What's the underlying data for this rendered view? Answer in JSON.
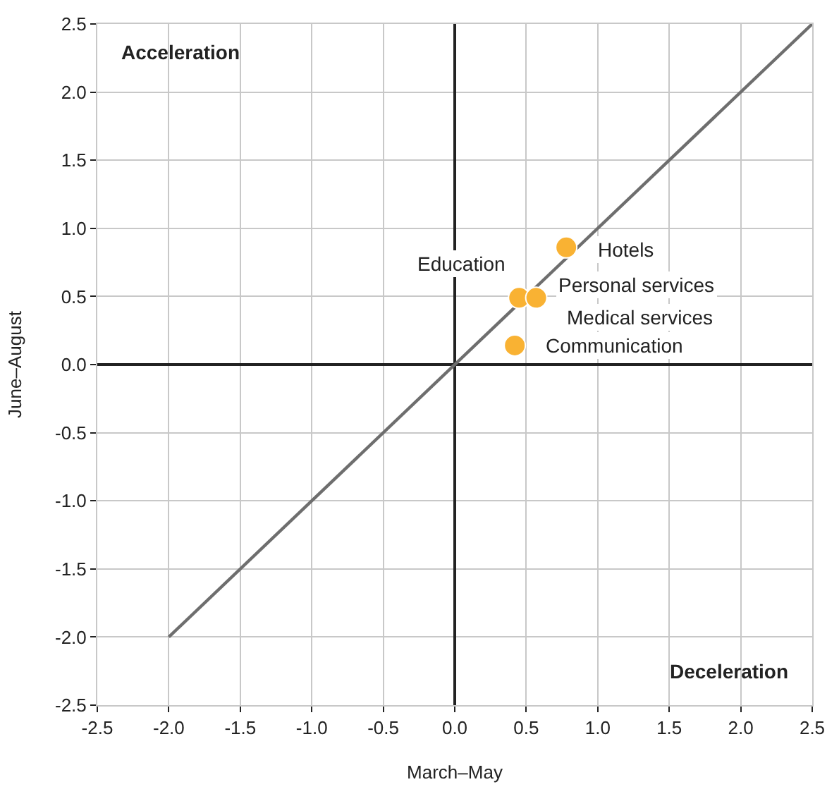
{
  "chart_data": {
    "type": "scatter",
    "xlabel": "March–May",
    "ylabel": "June–August",
    "series": [
      {
        "type": "line",
        "color": "#6e6e6e",
        "x": [
          -2.0,
          2.5
        ],
        "values": [
          -2.0,
          2.5
        ],
        "marker": "none"
      },
      {
        "color": "#f9b233",
        "x": [
          0.45,
          0.57,
          0.78,
          0.42
        ],
        "values": [
          0.49,
          0.49,
          0.86,
          0.14
        ],
        "marker": "circle"
      }
    ],
    "annotations": [
      {
        "text": "Education",
        "x": 0.45,
        "y": 0.49
      },
      {
        "text": "Personal services",
        "x": 0.57,
        "y": 0.49
      },
      {
        "text": "Medical services",
        "x": 0.57,
        "y": 0.49
      },
      {
        "text": "Hotels",
        "x": 0.78,
        "y": 0.86
      },
      {
        "text": "Communication",
        "x": 0.42,
        "y": 0.14
      },
      "Acceleration",
      "Deceleration"
    ],
    "xlim": [
      -2.5,
      2.5
    ],
    "ylim": [
      -2.5,
      2.5
    ],
    "xticks": [
      {
        "value": -2.5,
        "label": "-2.5"
      },
      {
        "value": -2.0,
        "label": "-2.0"
      },
      {
        "value": -1.5,
        "label": "-1.5"
      },
      {
        "value": -1.0,
        "label": "-1.0"
      },
      {
        "value": -0.5,
        "label": "-0.5"
      },
      {
        "value": 0,
        "label": "0.0"
      },
      {
        "value": 0.5,
        "label": "0.5"
      },
      {
        "value": 1.0,
        "label": "1.0"
      },
      {
        "value": 1.5,
        "label": "1.5"
      },
      {
        "value": 2.0,
        "label": "2.0"
      },
      {
        "value": 2.5,
        "label": "2.5"
      }
    ],
    "yticks": [
      {
        "value": -2.5,
        "label": "-2.5"
      },
      {
        "value": -2.0,
        "label": "-2.0"
      },
      {
        "value": -1.5,
        "label": "-1.5"
      },
      {
        "value": -1.0,
        "label": "-1.0"
      },
      {
        "value": -0.5,
        "label": "-0.5"
      },
      {
        "value": 0,
        "label": "0.0"
      },
      {
        "value": 0.5,
        "label": "0.5"
      },
      {
        "value": 1.0,
        "label": "1.0"
      },
      {
        "value": 1.5,
        "label": "1.5"
      },
      {
        "value": 2.0,
        "label": "2.0"
      },
      {
        "value": 2.5,
        "label": "2.5"
      }
    ],
    "grid": true
  }
}
